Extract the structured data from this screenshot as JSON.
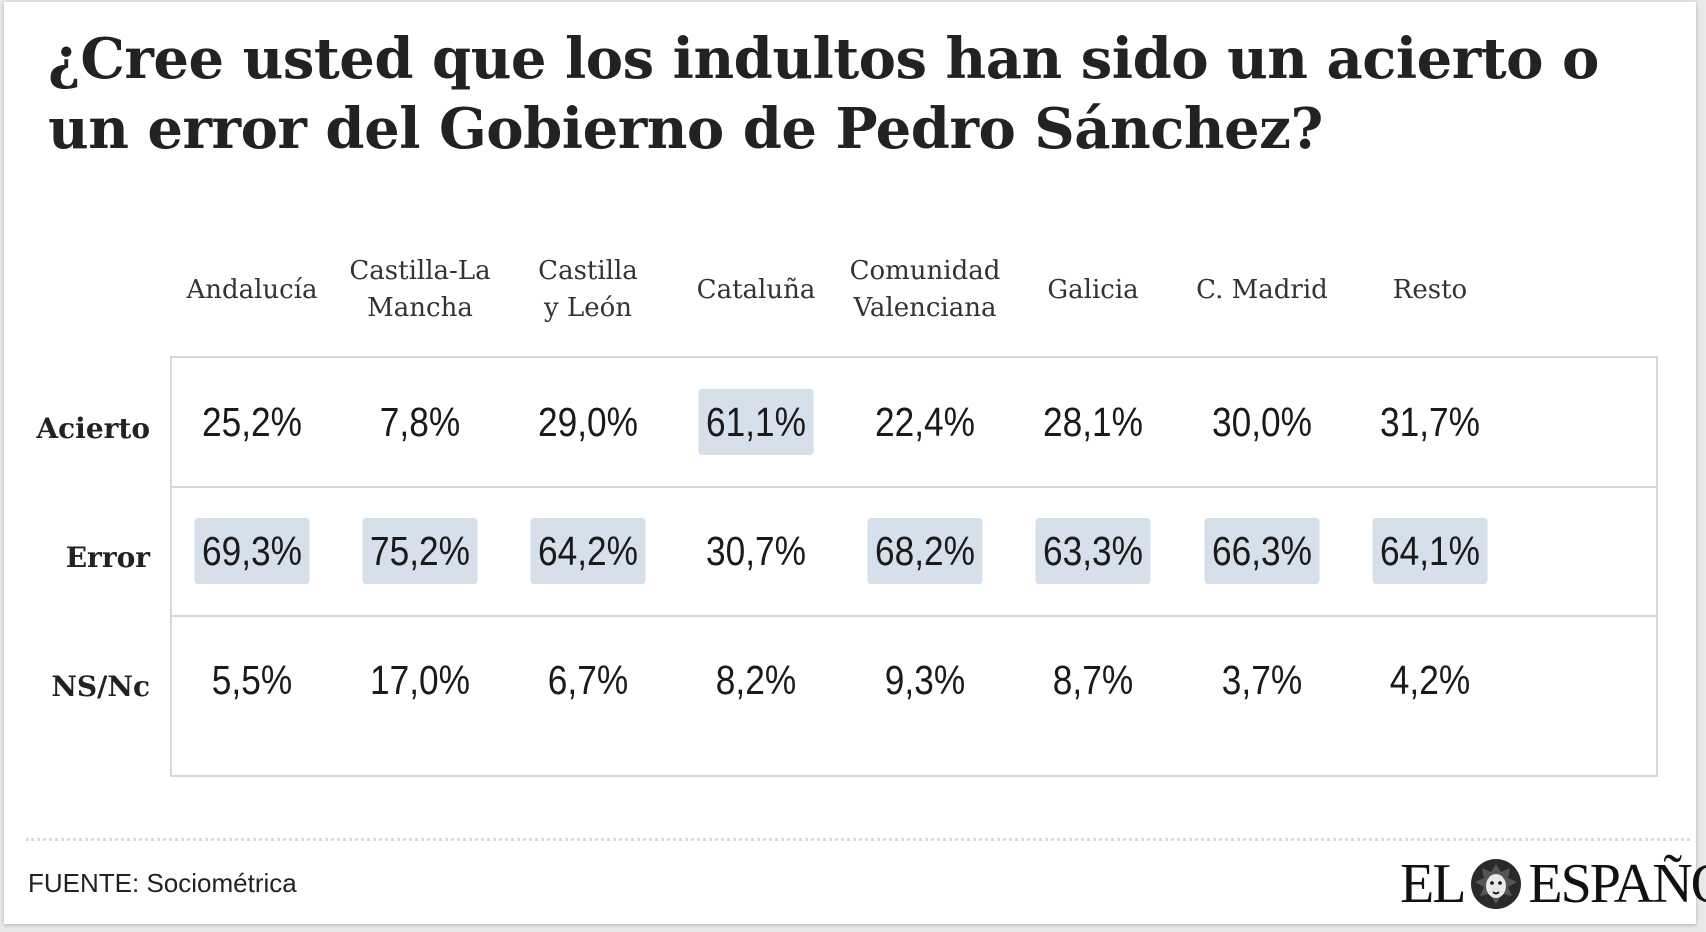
{
  "title": "¿Cree usted que los indultos han sido un acierto o un error del Gobierno de Pedro Sánchez?",
  "source": "FUENTE: Sociométrica",
  "logo": {
    "left": "EL",
    "right": "ESPAÑOL",
    "icon": "lion-icon"
  },
  "colors": {
    "highlight": "#d6e0ea",
    "border": "#d7d7d7",
    "text": "#1a1a1a"
  },
  "chart_data": {
    "type": "table",
    "title": "¿Cree usted que los indultos han sido un acierto o un error del Gobierno de Pedro Sánchez?",
    "columns": [
      "Andalucía",
      "Castilla-La\nMancha",
      "Castilla\ny León",
      "Cataluña",
      "Comunidad\nValenciana",
      "Galicia",
      "C. Madrid",
      "Resto"
    ],
    "rows": [
      {
        "label": "Acierto",
        "values": [
          "25,2%",
          "7,8%",
          "29,0%",
          "61,1%",
          "22,4%",
          "28,1%",
          "30,0%",
          "31,7%"
        ],
        "numeric": [
          25.2,
          7.8,
          29.0,
          61.1,
          22.4,
          28.1,
          30.0,
          31.7
        ]
      },
      {
        "label": "Error",
        "values": [
          "69,3%",
          "75,2%",
          "64,2%",
          "30,7%",
          "68,2%",
          "63,3%",
          "66,3%",
          "64,1%"
        ],
        "numeric": [
          69.3,
          75.2,
          64.2,
          30.7,
          68.2,
          63.3,
          66.3,
          64.1
        ]
      },
      {
        "label": "NS/Nc",
        "values": [
          "5,5%",
          "17,0%",
          "6,7%",
          "8,2%",
          "9,3%",
          "8,7%",
          "3,7%",
          "4,2%"
        ],
        "numeric": [
          5.5,
          17.0,
          6.7,
          8.2,
          9.3,
          8.7,
          3.7,
          4.2
        ]
      }
    ],
    "highlighted_cells": [
      [
        0,
        3
      ],
      [
        1,
        0
      ],
      [
        1,
        1
      ],
      [
        1,
        2
      ],
      [
        1,
        4
      ],
      [
        1,
        5
      ],
      [
        1,
        6
      ],
      [
        1,
        7
      ]
    ]
  }
}
